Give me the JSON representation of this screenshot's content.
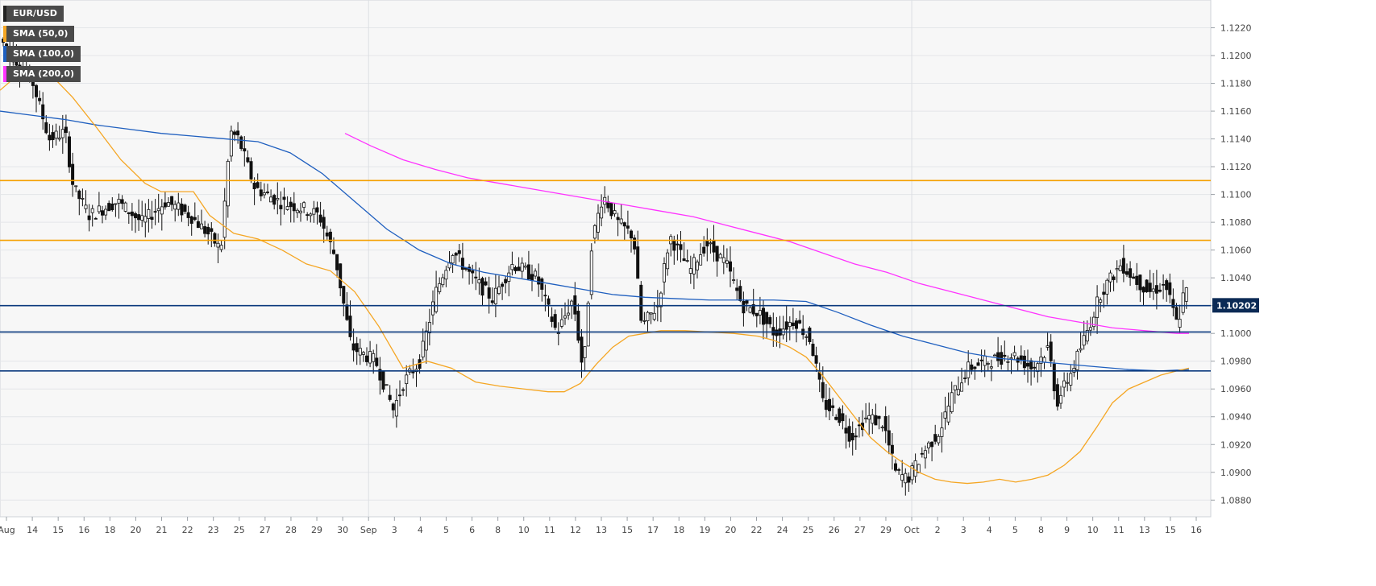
{
  "chart_data": {
    "type": "candlestick",
    "symbol": "EUR/USD",
    "legend": [
      {
        "label": "EUR/USD",
        "color": "#222222"
      },
      {
        "label": "SMA (50,0)",
        "color": "#f5a623"
      },
      {
        "label": "SMA (100,0)",
        "color": "#1f5fbf"
      },
      {
        "label": "SMA (200,0)",
        "color": "#ff33ff"
      }
    ],
    "legend_placement": "top-left",
    "ylim": [
      1.0868,
      1.124
    ],
    "y_ticks": [
      "1.1220",
      "1.1200",
      "1.1180",
      "1.1160",
      "1.1140",
      "1.1120",
      "1.1100",
      "1.1080",
      "1.1060",
      "1.1040",
      "1.1020",
      "1.1000",
      "1.0980",
      "1.0960",
      "1.0940",
      "1.0920",
      "1.0900",
      "1.0880"
    ],
    "x_ticks": [
      "Aug",
      "14",
      "15",
      "16",
      "18",
      "20",
      "21",
      "22",
      "23",
      "25",
      "27",
      "28",
      "29",
      "30",
      "Sep",
      "3",
      "4",
      "5",
      "6",
      "8",
      "10",
      "11",
      "12",
      "13",
      "15",
      "17",
      "18",
      "19",
      "20",
      "22",
      "24",
      "25",
      "26",
      "27",
      "29",
      "Oct",
      "2",
      "3",
      "4",
      "5",
      "8",
      "9",
      "10",
      "11",
      "13",
      "15",
      "16"
    ],
    "current_price": "1.10202",
    "horizontal_levels": [
      {
        "value": 1.111,
        "color": "#f5a000"
      },
      {
        "value": 1.1067,
        "color": "#f5a000"
      },
      {
        "value": 1.102,
        "color": "#0b3a7e"
      },
      {
        "value": 1.1001,
        "color": "#0b3a7e"
      },
      {
        "value": 1.0973,
        "color": "#0b3a7e"
      }
    ],
    "sma_50": [
      [
        0,
        1.1175
      ],
      [
        30,
        1.119
      ],
      [
        60,
        1.1188
      ],
      [
        90,
        1.117
      ],
      [
        120,
        1.1148
      ],
      [
        150,
        1.1125
      ],
      [
        180,
        1.1108
      ],
      [
        200,
        1.1102
      ],
      [
        220,
        1.1102
      ],
      [
        240,
        1.1102
      ],
      [
        260,
        1.1085
      ],
      [
        290,
        1.1072
      ],
      [
        320,
        1.1068
      ],
      [
        350,
        1.106
      ],
      [
        380,
        1.105
      ],
      [
        410,
        1.1045
      ],
      [
        440,
        1.103
      ],
      [
        470,
        1.1005
      ],
      [
        500,
        1.0975
      ],
      [
        530,
        1.098
      ],
      [
        560,
        1.0975
      ],
      [
        590,
        1.0965
      ],
      [
        620,
        1.0962
      ],
      [
        650,
        1.096
      ],
      [
        680,
        1.0958
      ],
      [
        700,
        1.0958
      ],
      [
        720,
        1.0964
      ],
      [
        740,
        1.0978
      ],
      [
        760,
        1.099
      ],
      [
        780,
        1.0998
      ],
      [
        800,
        1.1
      ],
      [
        820,
        1.1002
      ],
      [
        850,
        1.1002
      ],
      [
        880,
        1.1001
      ],
      [
        910,
        1.1
      ],
      [
        940,
        1.0998
      ],
      [
        960,
        1.0995
      ],
      [
        980,
        1.099
      ],
      [
        1000,
        1.0983
      ],
      [
        1020,
        1.097
      ],
      [
        1040,
        1.0955
      ],
      [
        1060,
        1.094
      ],
      [
        1080,
        1.0925
      ],
      [
        1100,
        1.0915
      ],
      [
        1120,
        1.0907
      ],
      [
        1140,
        1.09
      ],
      [
        1160,
        1.0895
      ],
      [
        1180,
        1.0893
      ],
      [
        1200,
        1.0892
      ],
      [
        1220,
        1.0893
      ],
      [
        1240,
        1.0895
      ],
      [
        1260,
        1.0893
      ],
      [
        1280,
        1.0895
      ],
      [
        1300,
        1.0898
      ],
      [
        1320,
        1.0905
      ],
      [
        1340,
        1.0915
      ],
      [
        1360,
        1.0932
      ],
      [
        1380,
        1.095
      ],
      [
        1400,
        1.096
      ],
      [
        1420,
        1.0965
      ],
      [
        1440,
        1.097
      ],
      [
        1460,
        1.0973
      ],
      [
        1475,
        1.0975
      ]
    ],
    "sma_100": [
      [
        0,
        1.116
      ],
      [
        40,
        1.1157
      ],
      [
        80,
        1.1154
      ],
      [
        120,
        1.115
      ],
      [
        160,
        1.1147
      ],
      [
        200,
        1.1144
      ],
      [
        240,
        1.1142
      ],
      [
        280,
        1.114
      ],
      [
        320,
        1.1138
      ],
      [
        360,
        1.113
      ],
      [
        400,
        1.1115
      ],
      [
        440,
        1.1095
      ],
      [
        480,
        1.1075
      ],
      [
        520,
        1.106
      ],
      [
        560,
        1.105
      ],
      [
        600,
        1.1044
      ],
      [
        640,
        1.104
      ],
      [
        680,
        1.1036
      ],
      [
        720,
        1.1032
      ],
      [
        760,
        1.1028
      ],
      [
        800,
        1.1026
      ],
      [
        840,
        1.1025
      ],
      [
        880,
        1.1024
      ],
      [
        920,
        1.1024
      ],
      [
        960,
        1.1024
      ],
      [
        1000,
        1.1023
      ],
      [
        1040,
        1.1015
      ],
      [
        1080,
        1.1006
      ],
      [
        1120,
        1.0998
      ],
      [
        1160,
        1.0992
      ],
      [
        1200,
        1.0986
      ],
      [
        1240,
        1.0982
      ],
      [
        1280,
        1.098
      ],
      [
        1320,
        1.0978
      ],
      [
        1360,
        1.0976
      ],
      [
        1400,
        1.0974
      ],
      [
        1440,
        1.0973
      ],
      [
        1475,
        1.0974
      ]
    ],
    "sma_200": [
      [
        428,
        1.1144
      ],
      [
        460,
        1.1135
      ],
      [
        500,
        1.1125
      ],
      [
        540,
        1.1118
      ],
      [
        580,
        1.1112
      ],
      [
        620,
        1.1108
      ],
      [
        660,
        1.1104
      ],
      [
        700,
        1.11
      ],
      [
        740,
        1.1096
      ],
      [
        780,
        1.1092
      ],
      [
        820,
        1.1088
      ],
      [
        860,
        1.1084
      ],
      [
        900,
        1.1078
      ],
      [
        940,
        1.1072
      ],
      [
        980,
        1.1066
      ],
      [
        1020,
        1.1058
      ],
      [
        1060,
        1.105
      ],
      [
        1100,
        1.1044
      ],
      [
        1140,
        1.1036
      ],
      [
        1180,
        1.103
      ],
      [
        1220,
        1.1024
      ],
      [
        1260,
        1.1018
      ],
      [
        1300,
        1.1012
      ],
      [
        1340,
        1.1008
      ],
      [
        1380,
        1.1004
      ],
      [
        1420,
        1.1002
      ],
      [
        1460,
        1.1
      ],
      [
        1475,
        1.1
      ]
    ]
  }
}
